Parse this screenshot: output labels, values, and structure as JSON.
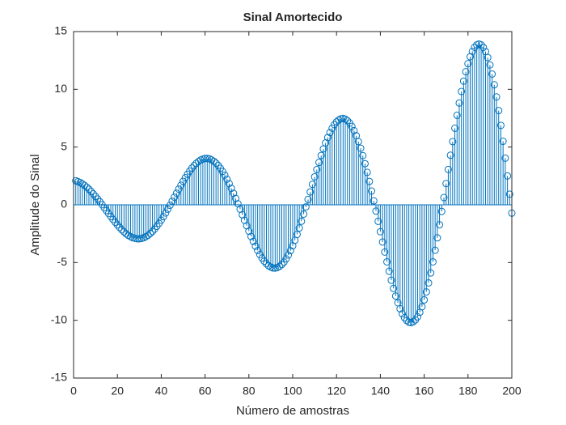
{
  "chart_data": {
    "type": "stem",
    "title": "Sinal Amortecido",
    "xlabel": "Número de amostras",
    "ylabel": "Amplitude do Sinal",
    "xlim": [
      0,
      200
    ],
    "xticks": [
      0,
      20,
      40,
      60,
      80,
      100,
      120,
      140,
      160,
      180,
      200
    ],
    "ylim": [
      -15,
      15
    ],
    "yticks": [
      -15,
      -10,
      -5,
      0,
      5,
      10,
      15
    ],
    "grid": false,
    "x": [
      1,
      2,
      3,
      4,
      5,
      6,
      7,
      8,
      9,
      10,
      11,
      12,
      13,
      14,
      15,
      16,
      17,
      18,
      19,
      20,
      21,
      22,
      23,
      24,
      25,
      26,
      27,
      28,
      29,
      30,
      31,
      32,
      33,
      34,
      35,
      36,
      37,
      38,
      39,
      40,
      41,
      42,
      43,
      44,
      45,
      46,
      47,
      48,
      49,
      50,
      51,
      52,
      53,
      54,
      55,
      56,
      57,
      58,
      59,
      60,
      61,
      62,
      63,
      64,
      65,
      66,
      67,
      68,
      69,
      70,
      71,
      72,
      73,
      74,
      75,
      76,
      77,
      78,
      79,
      80,
      81,
      82,
      83,
      84,
      85,
      86,
      87,
      88,
      89,
      90,
      91,
      92,
      93,
      94,
      95,
      96,
      97,
      98,
      99,
      100,
      101,
      102,
      103,
      104,
      105,
      106,
      107,
      108,
      109,
      110,
      111,
      112,
      113,
      114,
      115,
      116,
      117,
      118,
      119,
      120,
      121,
      122,
      123,
      124,
      125,
      126,
      127,
      128,
      129,
      130,
      131,
      132,
      133,
      134,
      135,
      136,
      137,
      138,
      139,
      140,
      141,
      142,
      143,
      144,
      145,
      146,
      147,
      148,
      149,
      150,
      151,
      152,
      153,
      154,
      155,
      156,
      157,
      158,
      159,
      160,
      161,
      162,
      163,
      164,
      165,
      166,
      167,
      168,
      169,
      170,
      171,
      172,
      173,
      174,
      175,
      176,
      177,
      178,
      179,
      180,
      181,
      182,
      183,
      184,
      185,
      186,
      187,
      188,
      189,
      190,
      191,
      192,
      193,
      194,
      195,
      196,
      197,
      198,
      199,
      200
    ],
    "series": [
      {
        "color": "#0072bd",
        "values": [
          2.08,
          2.01,
          1.93,
          1.81,
          1.68,
          1.53,
          1.35,
          1.16,
          0.95,
          0.73,
          0.5,
          0.26,
          0.01,
          -0.25,
          -0.5,
          -0.76,
          -1.02,
          -1.27,
          -1.51,
          -1.74,
          -1.96,
          -2.16,
          -2.34,
          -2.51,
          -2.65,
          -2.76,
          -2.85,
          -2.9,
          -2.94,
          -2.94,
          -2.91,
          -2.85,
          -2.76,
          -2.64,
          -2.48,
          -2.3,
          -2.1,
          -1.86,
          -1.61,
          -1.33,
          -1.03,
          -0.71,
          -0.38,
          -0.04,
          0.31,
          0.66,
          1.01,
          1.36,
          1.7,
          2.03,
          2.35,
          2.65,
          2.92,
          3.18,
          3.4,
          3.59,
          3.75,
          3.88,
          3.96,
          4.01,
          4.01,
          3.98,
          3.89,
          3.77,
          3.61,
          3.41,
          3.16,
          2.89,
          2.57,
          2.22,
          1.84,
          1.43,
          1.0,
          0.55,
          0.09,
          -0.38,
          -0.86,
          -1.34,
          -1.81,
          -2.28,
          -2.74,
          -3.16,
          -3.58,
          -3.96,
          -4.31,
          -4.61,
          -4.88,
          -5.1,
          -5.28,
          -5.39,
          -5.47,
          -5.48,
          -5.43,
          -5.33,
          -5.17,
          -4.96,
          -4.68,
          -4.35,
          -3.97,
          -3.55,
          -3.07,
          -2.56,
          -2.01,
          -1.42,
          -0.81,
          -0.18,
          0.46,
          1.11,
          1.77,
          2.42,
          3.05,
          3.67,
          4.27,
          4.84,
          5.36,
          5.83,
          6.26,
          6.63,
          6.94,
          7.18,
          7.35,
          7.45,
          7.48,
          7.42,
          7.29,
          7.08,
          6.79,
          6.42,
          5.98,
          5.47,
          4.9,
          4.26,
          3.56,
          2.81,
          2.02,
          1.19,
          0.34,
          -0.54,
          -1.43,
          -2.33,
          -3.22,
          -4.09,
          -4.94,
          -5.75,
          -6.53,
          -7.24,
          -7.9,
          -8.48,
          -9.0,
          -9.44,
          -9.77,
          -10.02,
          -10.16,
          -10.2,
          -10.13,
          -9.97,
          -9.7,
          -9.31,
          -8.82,
          -8.23,
          -7.54,
          -6.76,
          -5.9,
          -4.94,
          -3.93,
          -2.86,
          -1.73,
          -0.57,
          0.63,
          1.84,
          3.06,
          4.29,
          5.47,
          6.63,
          7.75,
          8.81,
          9.81,
          10.71,
          11.52,
          12.22,
          12.82,
          13.29,
          13.64,
          13.85,
          13.92,
          13.85,
          13.63,
          13.27,
          12.75,
          12.11,
          11.32,
          10.39,
          9.34,
          8.16,
          6.88,
          5.5,
          4.04,
          2.5,
          0.92,
          -0.72
        ]
      }
    ]
  }
}
